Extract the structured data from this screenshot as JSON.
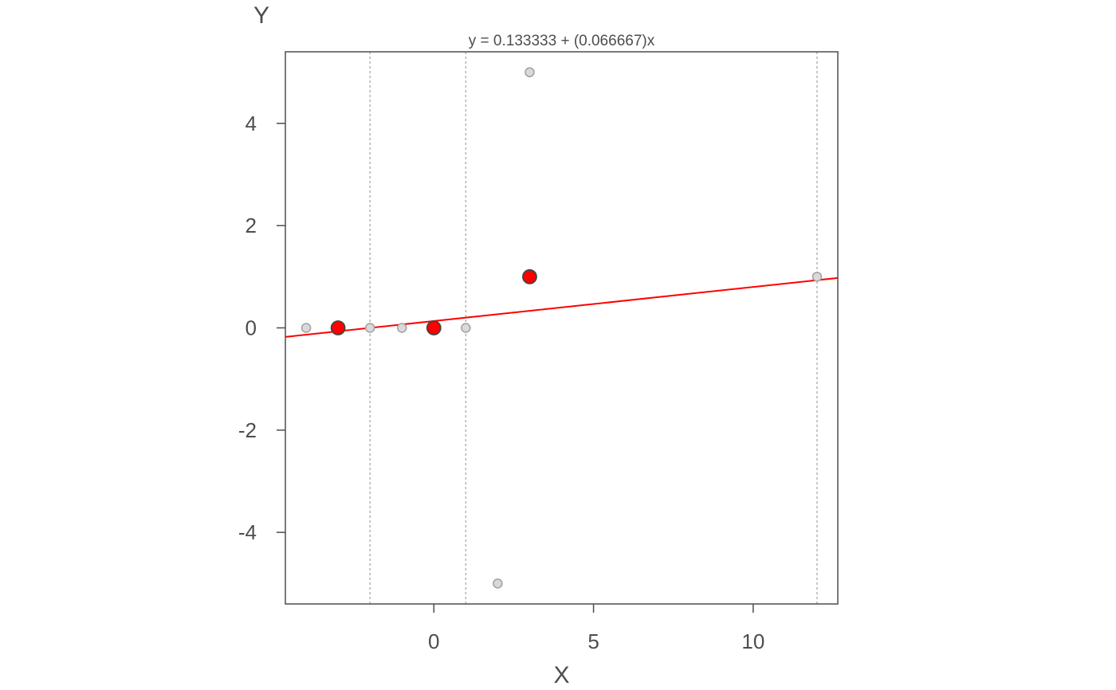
{
  "chart_data": {
    "type": "scatter",
    "title": "y = 0.133333 + (0.066667)x",
    "xlabel": "X",
    "ylabel": "Y",
    "xlim": [
      -4.65,
      12.65
    ],
    "ylim": [
      -5.4,
      5.4
    ],
    "x_ticks": [
      0,
      5,
      10
    ],
    "y_ticks": [
      -4,
      -2,
      0,
      2,
      4
    ],
    "grid": false,
    "legend": "none",
    "regression_line": {
      "intercept": 0.133333,
      "slope": 0.066667,
      "color": "#ff0000"
    },
    "vertical_guides": [
      -2,
      1,
      12
    ],
    "series": [
      {
        "points": [
          {
            "x": -4,
            "y": 0
          },
          {
            "x": -2,
            "y": 0
          },
          {
            "x": -1,
            "y": 0
          },
          {
            "x": 1,
            "y": 0
          },
          {
            "x": 2,
            "y": -5
          },
          {
            "x": 3,
            "y": 5
          },
          {
            "x": 12,
            "y": 1
          }
        ],
        "color": "#d9d9d9",
        "stroke": "#a0a0a0"
      },
      {
        "points": [
          {
            "x": -3,
            "y": 0
          },
          {
            "x": 0,
            "y": 0
          },
          {
            "x": 3,
            "y": 1
          }
        ],
        "color": "#ff0000",
        "stroke": "#444444"
      }
    ]
  }
}
